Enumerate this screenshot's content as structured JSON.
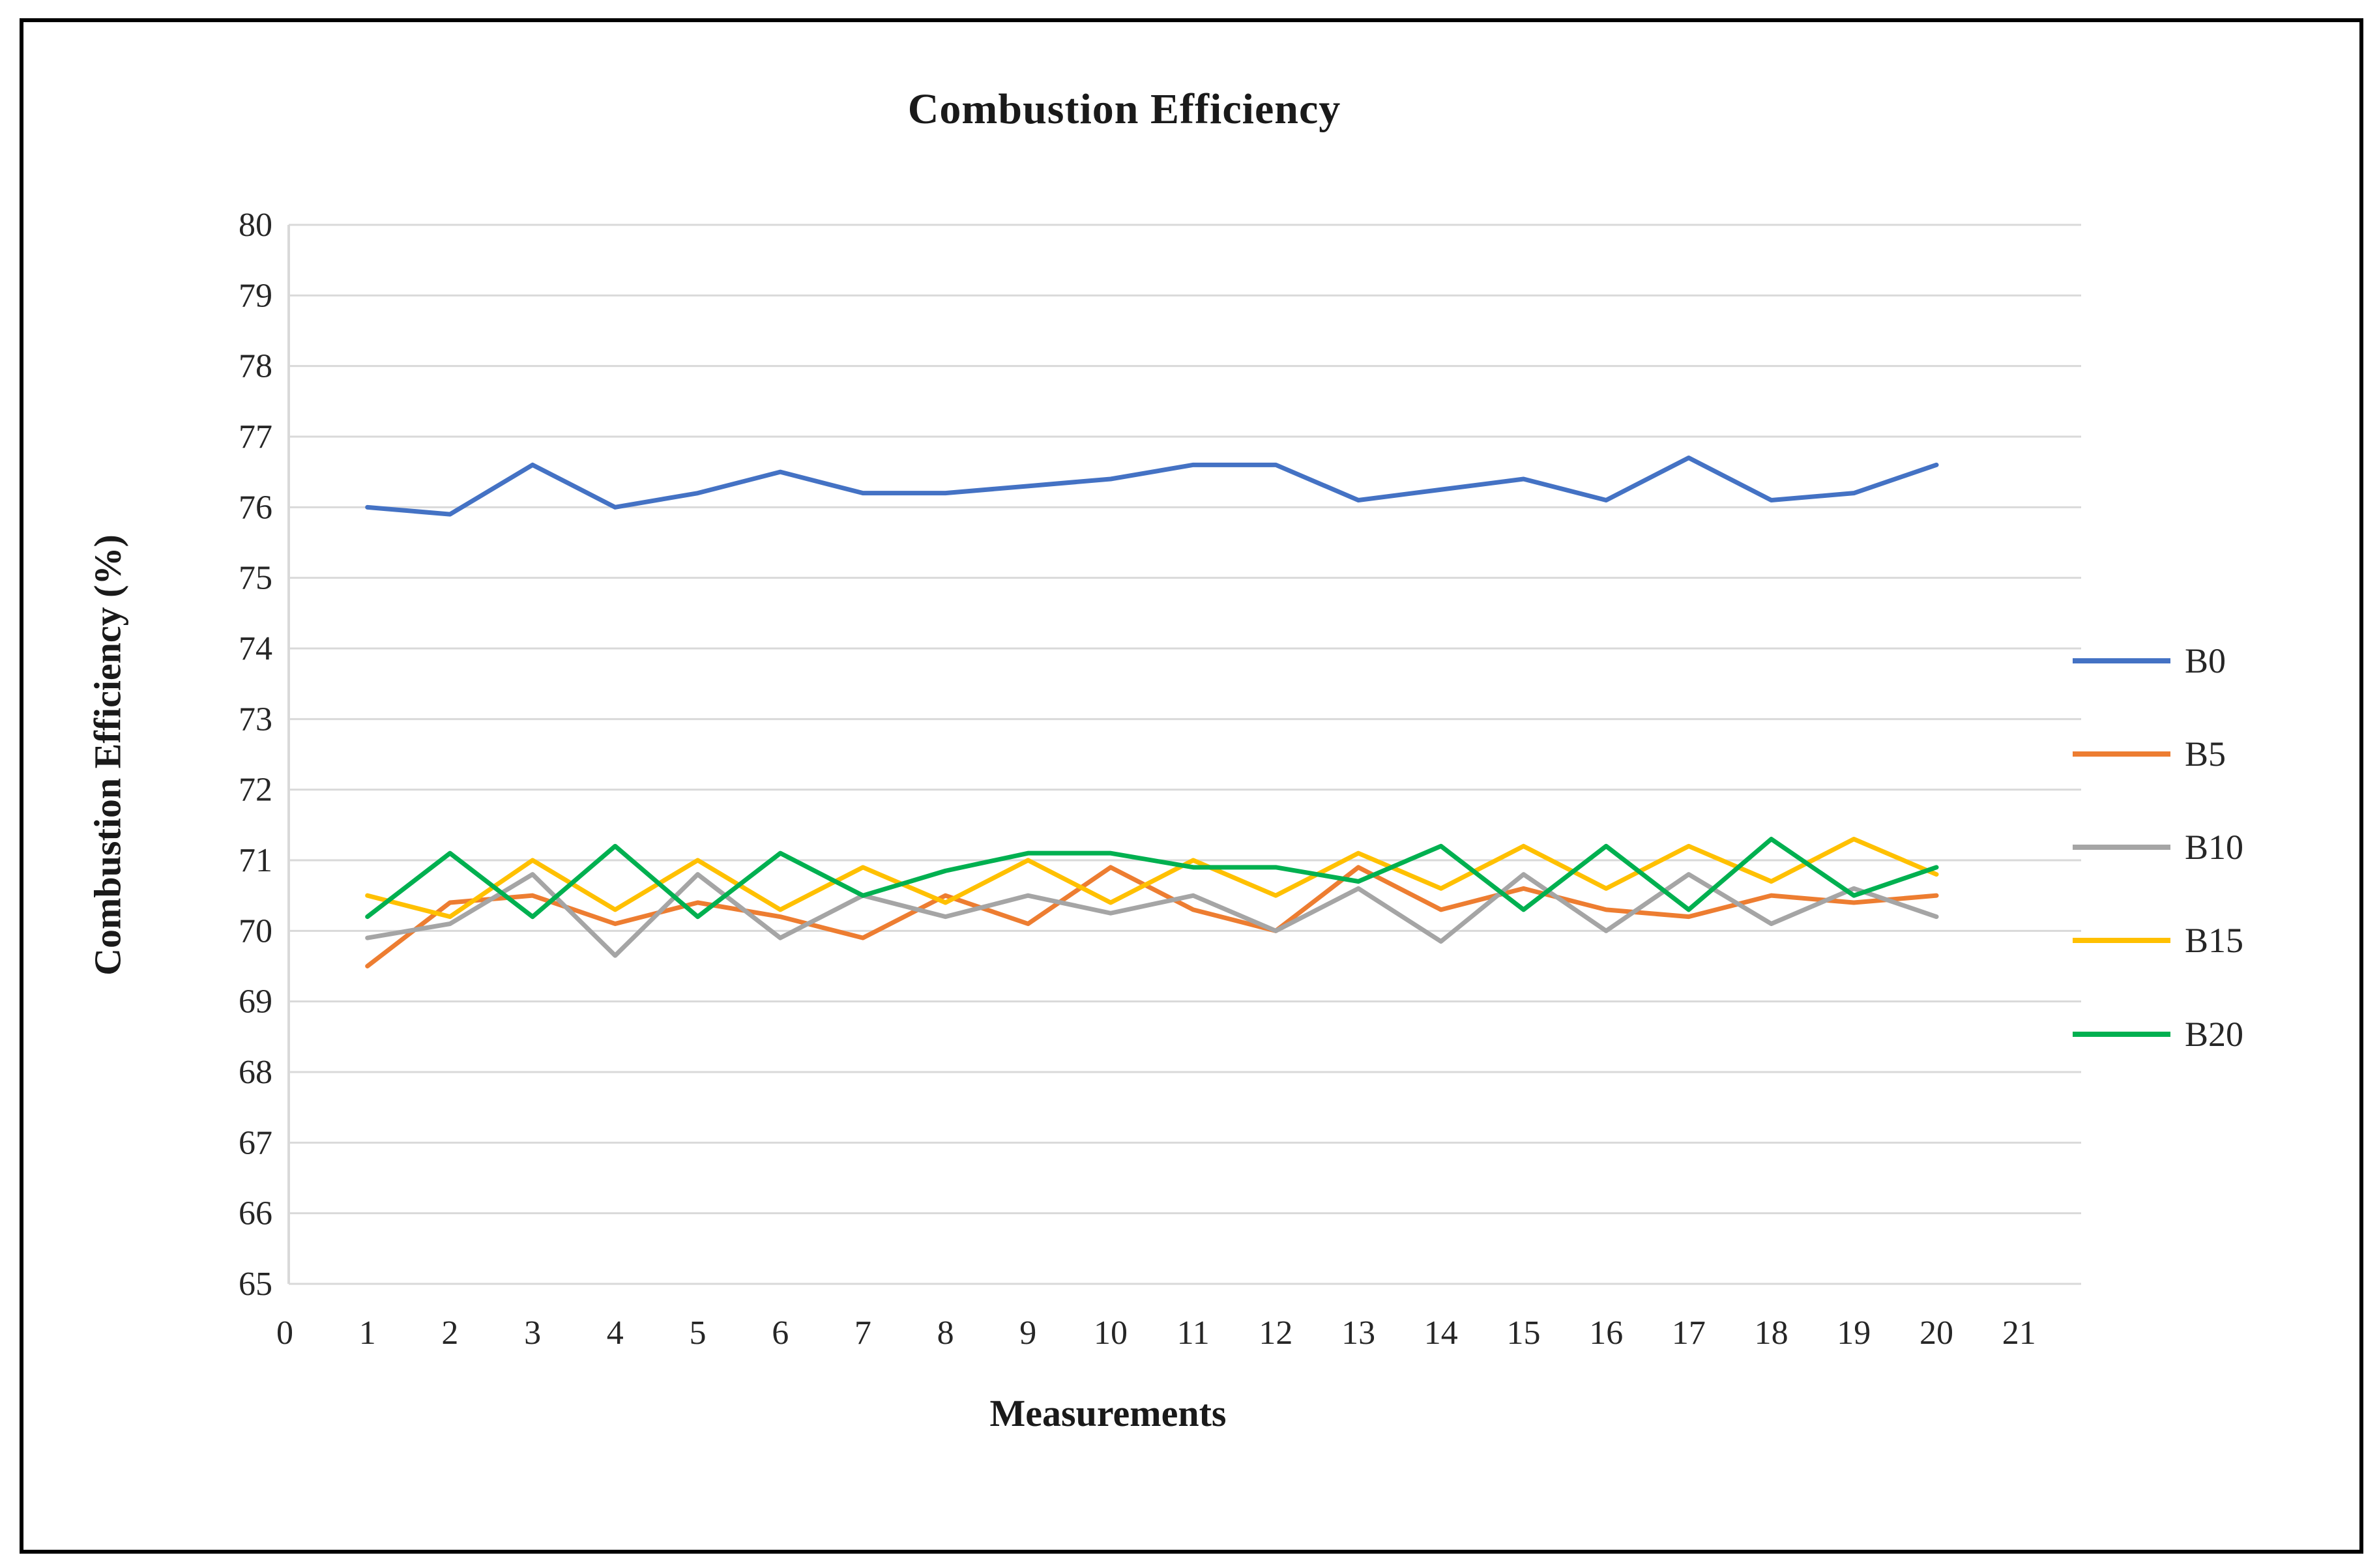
{
  "title": "Combustion Efficiency",
  "chart_data": {
    "type": "line",
    "title": "Combustion Efficiency",
    "xlabel": "Measurements",
    "ylabel": "Combustion Efficiency (%)",
    "x": [
      1,
      2,
      3,
      4,
      5,
      6,
      7,
      8,
      9,
      10,
      11,
      12,
      13,
      14,
      15,
      16,
      17,
      18,
      19,
      20
    ],
    "series": [
      {
        "name": "B0",
        "color": "#4472C4",
        "values": [
          76.0,
          75.9,
          76.6,
          76.0,
          76.2,
          76.5,
          76.2,
          76.2,
          76.3,
          76.4,
          76.6,
          76.6,
          76.1,
          76.25,
          76.4,
          76.1,
          76.7,
          76.1,
          76.2,
          76.6
        ]
      },
      {
        "name": "B5",
        "color": "#ED7D31",
        "values": [
          69.5,
          70.4,
          70.5,
          70.1,
          70.4,
          70.2,
          69.9,
          70.5,
          70.1,
          70.9,
          70.3,
          70.0,
          70.9,
          70.3,
          70.6,
          70.3,
          70.2,
          70.5,
          70.4,
          70.5
        ]
      },
      {
        "name": "B10",
        "color": "#A5A5A5",
        "values": [
          69.9,
          70.1,
          70.8,
          69.65,
          70.8,
          69.9,
          70.5,
          70.2,
          70.5,
          70.25,
          70.5,
          70.0,
          70.6,
          69.85,
          70.8,
          70.0,
          70.8,
          70.1,
          70.6,
          70.2
        ]
      },
      {
        "name": "B15",
        "color": "#FFC000",
        "values": [
          70.5,
          70.2,
          71.0,
          70.3,
          71.0,
          70.3,
          70.9,
          70.4,
          71.0,
          70.4,
          71.0,
          70.5,
          71.1,
          70.6,
          71.2,
          70.6,
          71.2,
          70.7,
          71.3,
          70.8
        ]
      },
      {
        "name": "B20",
        "color": "#00B050",
        "values": [
          70.2,
          71.1,
          70.2,
          71.2,
          70.2,
          71.1,
          70.5,
          70.85,
          71.1,
          71.1,
          70.9,
          70.9,
          70.7,
          71.2,
          70.3,
          71.2,
          70.3,
          71.3,
          70.5,
          70.9
        ]
      }
    ],
    "x_ticks": [
      0,
      1,
      2,
      3,
      4,
      5,
      6,
      7,
      8,
      9,
      10,
      11,
      12,
      13,
      14,
      15,
      16,
      17,
      18,
      19,
      20,
      21
    ],
    "y_ticks": [
      80,
      79,
      78,
      77,
      76,
      75,
      74,
      73,
      72,
      71,
      70,
      69,
      68,
      67,
      66,
      65
    ],
    "ylim": [
      65,
      80
    ],
    "xlim": [
      0,
      21
    ],
    "grid": "horizontal",
    "legend_position": "right",
    "grid_color": "#D9D9D9",
    "tick_color": "#262626"
  },
  "y_axis": {
    "title": "Combustion Efficiency (%)"
  },
  "x_axis": {
    "title": "Measurements"
  },
  "legend": {
    "items": [
      "B0",
      "B5",
      "B10",
      "B15",
      "B20"
    ]
  }
}
